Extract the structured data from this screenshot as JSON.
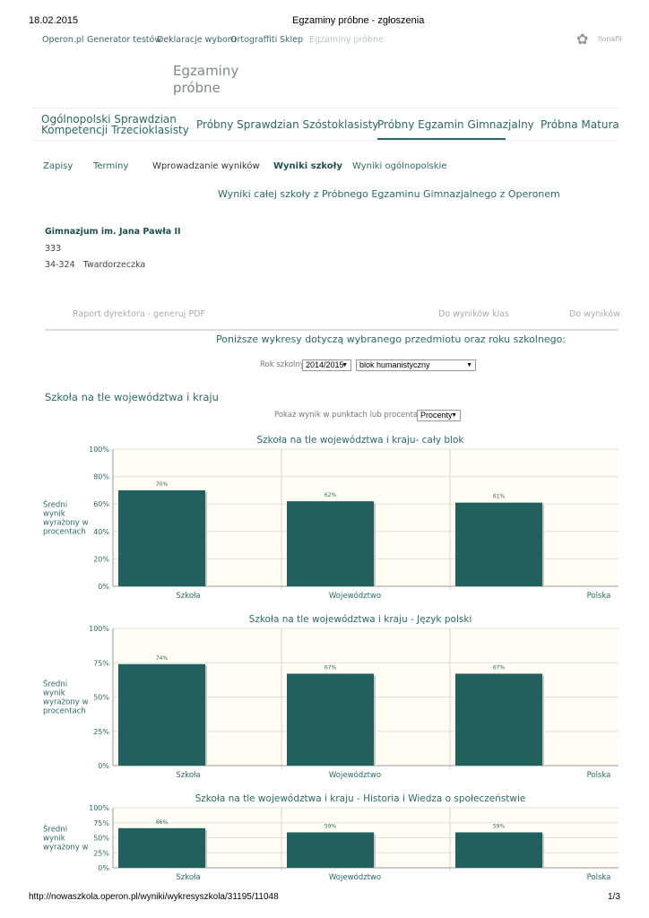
{
  "browser": {
    "date": "18.02.2015",
    "title": "Egzaminy próbne - zgłoszenia",
    "url": "http://nowaszkola.operon.pl/wyniki/wykresyszkola/31195/11048",
    "page": "1/3"
  },
  "topnav": {
    "items": [
      "Operon.pl",
      "Generator testów",
      "Deklaracje wyboru",
      "Ortograffiti",
      "Sklep",
      "Egzaminy próbne"
    ],
    "user": "ilonafil"
  },
  "logo": {
    "line1": "Egzaminy",
    "line2": "próbne"
  },
  "tabs": [
    {
      "label": "Ogólnopolski Sprawdzian\nKompetencji Trzecioklasisty"
    },
    {
      "label": "Próbny Sprawdzian Szóstoklasisty"
    },
    {
      "label": "Próbny Egzamin Gimnazjalny",
      "active": true
    },
    {
      "label": "Próbna Matura"
    }
  ],
  "subnav": [
    "Zapisy",
    "Terminy",
    "Wprowadzanie wyników",
    "Wyniki szkoły",
    "Wyniki ogólnopolskie"
  ],
  "heading": "Wyniki całej szkoły z Próbnego Egzaminu Gimnazjalnego z Operonem",
  "school": {
    "name": "Gimnazjum im. Jana Pawła II",
    "line2": "333",
    "postal": "34-324",
    "city": "Twardorzeczka"
  },
  "links": {
    "pdf": "Raport dyrektora - generuj PDF",
    "classes": "Do wyników klas",
    "results": "Do wyników"
  },
  "filters": {
    "intro": "Poniższe wykresy dotyczą wybranego przedmiotu oraz roku szkolnego:",
    "year_label": "Rok szkolny:",
    "year": "2014/2015",
    "subject": "blok humanistyczny"
  },
  "section": "Szkoła na tle województwa i kraju",
  "mode": {
    "label": "Pokaż wynik w punktach lub procentach:",
    "value": "Procenty"
  },
  "colors": {
    "bar": "#20605e",
    "plot_bg": "#fffdf4",
    "text": "#2a6a66"
  },
  "chart_data": [
    {
      "type": "bar",
      "title": "Szkoła na tle województwa i kraju- cały blok",
      "ylabel": "Średni wynik wyrażony w procentach",
      "categories": [
        "Szkoła",
        "Województwo",
        "Polska"
      ],
      "values": [
        70,
        62,
        61
      ],
      "labels": [
        "70%",
        "62%",
        "61%"
      ],
      "ylim": [
        0,
        100
      ],
      "yticks": [
        "0%",
        "20%",
        "40%",
        "60%",
        "80%",
        "100%"
      ],
      "grid": true
    },
    {
      "type": "bar",
      "title": "Szkoła na tle województwa i kraju - Język polski",
      "ylabel": "Średni wynik wyrażony w procentach",
      "categories": [
        "Szkoła",
        "Województwo",
        "Polska"
      ],
      "values": [
        74,
        67,
        67
      ],
      "labels": [
        "74%",
        "67%",
        "67%"
      ],
      "ylim": [
        0,
        100
      ],
      "yticks": [
        "0%",
        "25%",
        "50%",
        "75%",
        "100%"
      ],
      "grid": true
    },
    {
      "type": "bar",
      "title": "Szkoła na tle województwa i kraju - Historia i Wiedza o społeczeństwie",
      "ylabel": "Średni wynik wyrażony w",
      "categories": [
        "Szkoła",
        "Województwo",
        "Polska"
      ],
      "values": [
        66,
        59,
        59
      ],
      "labels": [
        "66%",
        "59%",
        "59%"
      ],
      "ylim": [
        0,
        100
      ],
      "yticks": [
        "0%",
        "25%",
        "50%",
        "75%",
        "100%"
      ],
      "grid": true
    }
  ]
}
